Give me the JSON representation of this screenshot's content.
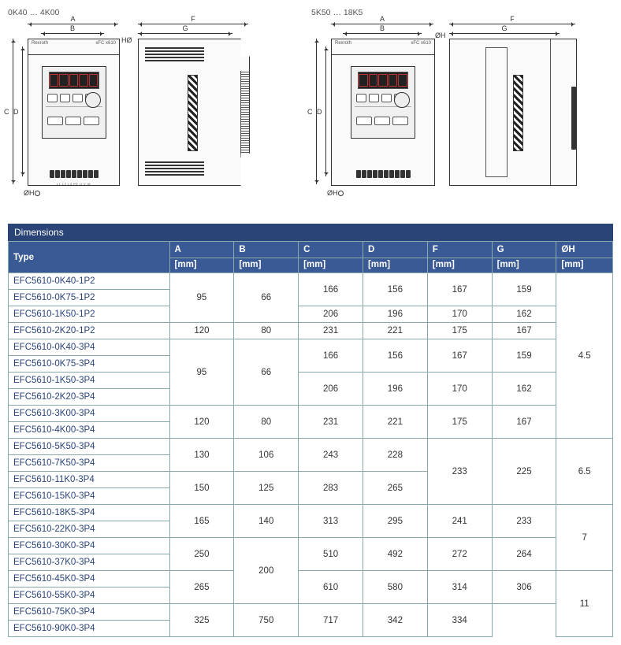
{
  "diagrams": {
    "group1": {
      "label": "0K40 … 4K00",
      "brand": "Rexroth",
      "model": "xFC x610"
    },
    "group2": {
      "label": "5K50 … 18K5",
      "brand": "Rexroth",
      "model": "xFC x610"
    },
    "dim_letters": {
      "A": "A",
      "B": "B",
      "C": "C",
      "D": "D",
      "F": "F",
      "G": "G",
      "H0": "HØ",
      "OH": "ØH"
    },
    "terminal_text": "L1 L2 L3 PE  U  V  W"
  },
  "table": {
    "title": "Dimensions",
    "header_top": [
      "Type",
      "A",
      "B",
      "C",
      "D",
      "F",
      "G",
      "ØH"
    ],
    "header_unit": "[mm]"
  },
  "rows": [
    {
      "type": "EFC5610-0K40-1P2",
      "a": "95",
      "a_span": 3,
      "b": "66",
      "b_span": 3,
      "c": "166",
      "c_span": 2,
      "d": "156",
      "d_span": 2,
      "f": "167",
      "f_span": 2,
      "g": "159",
      "g_span": 2,
      "oh": "4.5",
      "oh_span": 10
    },
    {
      "type": "EFC5610-0K75-1P2"
    },
    {
      "type": "EFC5610-1K50-1P2",
      "c": "206",
      "c_span": 1,
      "d": "196",
      "d_span": 1,
      "f": "170",
      "f_span": 1,
      "g": "162",
      "g_span": 1
    },
    {
      "type": "EFC5610-2K20-1P2",
      "a": "120",
      "a_span": 1,
      "b": "80",
      "b_span": 1,
      "c": "231",
      "c_span": 1,
      "d": "221",
      "d_span": 1,
      "f": "175",
      "f_span": 1,
      "g": "167",
      "g_span": 1
    },
    {
      "type": "EFC5610-0K40-3P4",
      "a": "95",
      "a_span": 4,
      "b": "66",
      "b_span": 4,
      "c": "166",
      "c_span": 2,
      "d": "156",
      "d_span": 2,
      "f": "167",
      "f_span": 2,
      "g": "159",
      "g_span": 2
    },
    {
      "type": "EFC5610-0K75-3P4"
    },
    {
      "type": "EFC5610-1K50-3P4",
      "c": "206",
      "c_span": 2,
      "d": "196",
      "d_span": 2,
      "f": "170",
      "f_span": 2,
      "g": "162",
      "g_span": 2
    },
    {
      "type": "EFC5610-2K20-3P4"
    },
    {
      "type": "EFC5610-3K00-3P4",
      "a": "120",
      "a_span": 2,
      "b": "80",
      "b_span": 2,
      "c": "231",
      "c_span": 2,
      "d": "221",
      "d_span": 2,
      "f": "175",
      "f_span": 2,
      "g": "167",
      "g_span": 2
    },
    {
      "type": "EFC5610-4K00-3P4"
    },
    {
      "type": "EFC5610-5K50-3P4",
      "a": "130",
      "a_span": 2,
      "b": "106",
      "b_span": 2,
      "c": "243",
      "c_span": 2,
      "d": "228",
      "d_span": 2,
      "f": "233",
      "f_span": 4,
      "g": "225",
      "g_span": 4,
      "oh": "6.5",
      "oh_span": 4
    },
    {
      "type": "EFC5610-7K50-3P4"
    },
    {
      "type": "EFC5610-11K0-3P4",
      "a": "150",
      "a_span": 2,
      "b": "125",
      "b_span": 2,
      "c": "283",
      "c_span": 2,
      "d": "265",
      "d_span": 2
    },
    {
      "type": "EFC5610-15K0-3P4"
    },
    {
      "type": "EFC5610-18K5-3P4",
      "a": "165",
      "a_span": 2,
      "b": "140",
      "b_span": 2,
      "c": "313",
      "c_span": 2,
      "d": "295",
      "d_span": 2,
      "f": "241",
      "f_span": 2,
      "g": "233",
      "g_span": 2,
      "oh": "7",
      "oh_span": 4
    },
    {
      "type": "EFC5610-22K0-3P4"
    },
    {
      "type": "EFC5610-30K0-3P4",
      "a": "250",
      "a_span": 2,
      "b": "200",
      "b_span": 4,
      "c": "510",
      "c_span": 2,
      "d": "492",
      "d_span": 2,
      "f": "272",
      "f_span": 2,
      "g": "264",
      "g_span": 2
    },
    {
      "type": "EFC5610-37K0-3P4"
    },
    {
      "type": "EFC5610-45K0-3P4",
      "a": "265",
      "a_span": 2,
      "c": "610",
      "c_span": 2,
      "d": "580",
      "d_span": 2,
      "f": "314",
      "f_span": 2,
      "g": "306",
      "g_span": 2,
      "oh": "11",
      "oh_span": 4
    },
    {
      "type": "EFC5610-55K0-3P4"
    },
    {
      "type": "EFC5610-75K0-3P4",
      "a": "325",
      "a_span": 2,
      "c": "750",
      "c_span": 2,
      "d": "717",
      "d_span": 2,
      "f": "342",
      "f_span": 2,
      "g": "334",
      "g_span": 2
    },
    {
      "type": "EFC5610-90K0-3P4"
    }
  ],
  "colors": {
    "header_bg": "#3a5a95",
    "title_bg": "#2a4478",
    "border": "#8fa5a5",
    "type_text": "#2a4478"
  }
}
